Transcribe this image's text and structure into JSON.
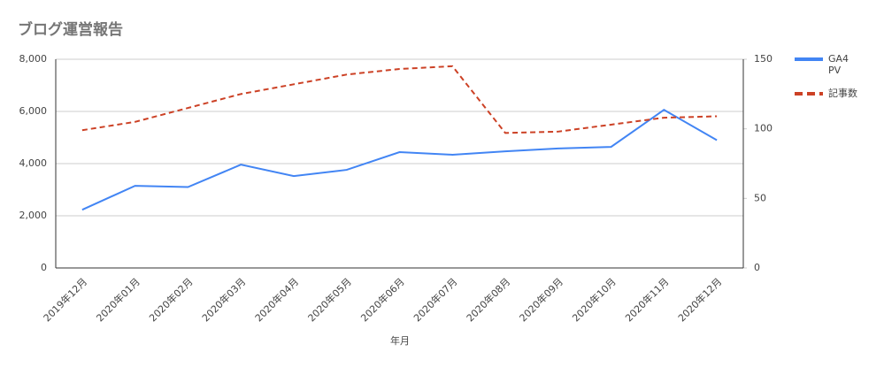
{
  "chart_data": {
    "type": "line",
    "title": "ブログ運営報告",
    "x_label": "年月",
    "categories": [
      "2019年12月",
      "2020年01月",
      "2020年02月",
      "2020年03月",
      "2020年04月",
      "2020年05月",
      "2020年06月",
      "2020年07月",
      "2020年08月",
      "2020年09月",
      "2020年10月",
      "2020年11月",
      "2020年12月"
    ],
    "series": [
      {
        "name": "GA4 PV",
        "color": "#4285f4",
        "line_style": "solid",
        "values": [
          2230,
          3150,
          3100,
          3960,
          3520,
          3760,
          4440,
          4340,
          4470,
          4580,
          4640,
          6060,
          4900
        ]
      },
      {
        "name": "記事数",
        "color": "#cc4125",
        "line_style": "dashed",
        "axis": "y2",
        "values": [
          99,
          105,
          115,
          125,
          132,
          139,
          143,
          145,
          97,
          98,
          103,
          108,
          109
        ]
      }
    ],
    "ylim": [
      0,
      8000
    ],
    "yticks": [
      0,
      {
        "value": 2000,
        "label": "2,000"
      },
      {
        "value": 4000,
        "label": "4,000"
      },
      {
        "value": 6000,
        "label": "6,000"
      },
      {
        "value": 8000,
        "label": "8,000"
      }
    ],
    "y2lim": [
      0,
      150
    ],
    "y2ticks": [
      0,
      50,
      100,
      150
    ],
    "grid": true,
    "legend": "right"
  }
}
